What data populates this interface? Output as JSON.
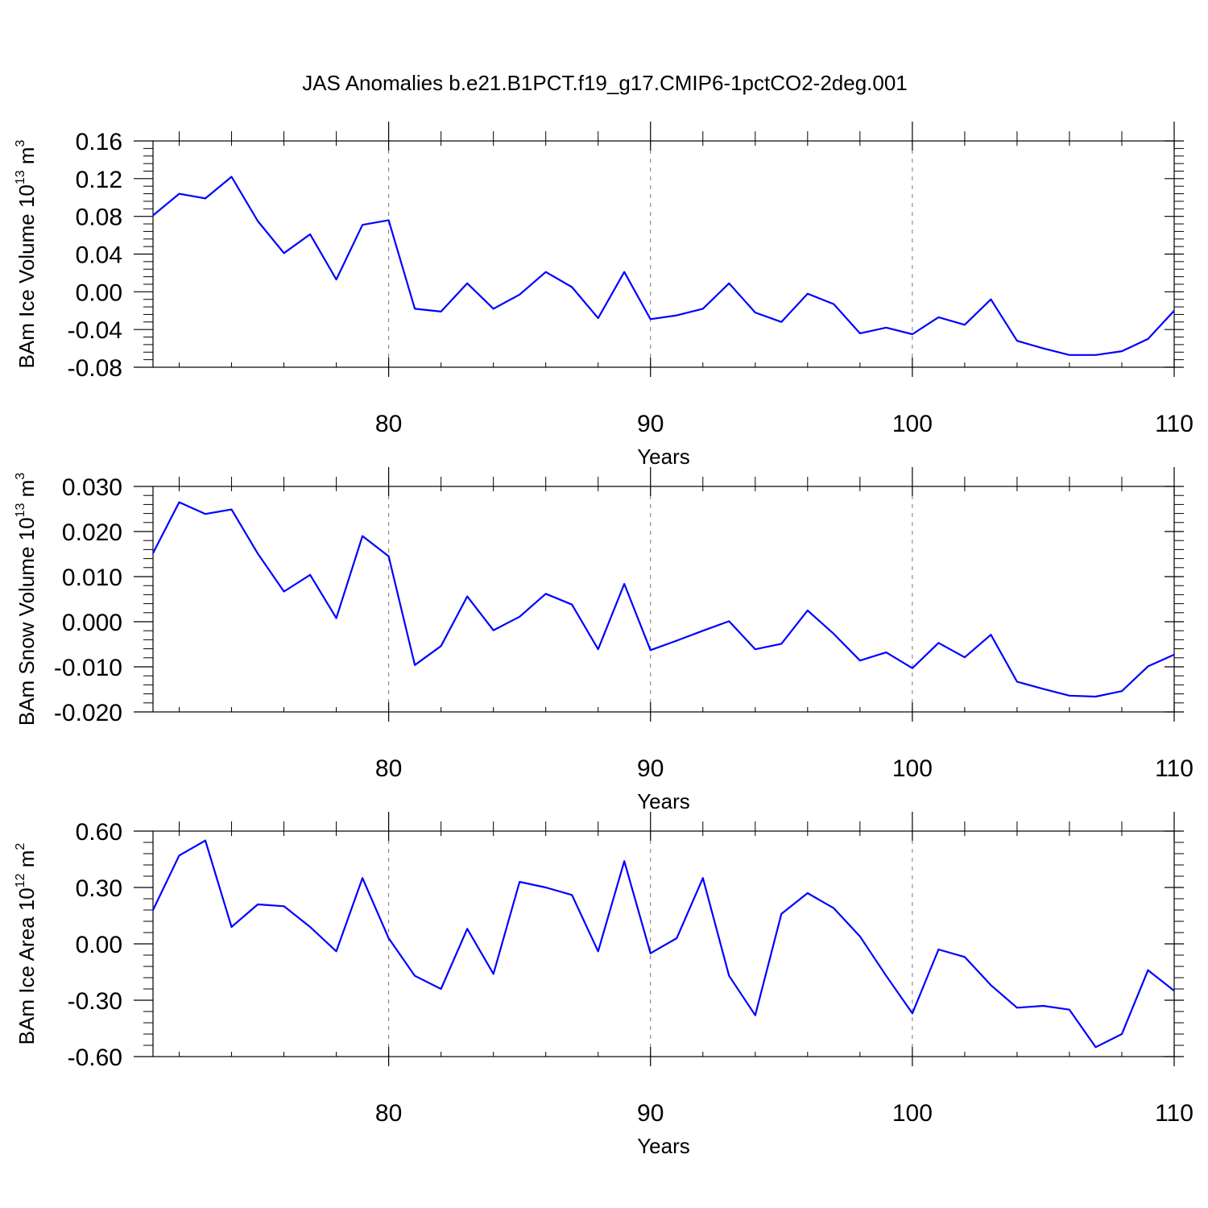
{
  "title": "JAS Anomalies b.e21.B1PCT.f19_g17.CMIP6-1pctCO2-2deg.001",
  "chart_data": [
    {
      "type": "line",
      "ylabel": {
        "base": "BAm Ice Volume 10",
        "exp": "13",
        "unit": " m",
        "unit_exp": "3"
      },
      "xlabel": "Years",
      "xlim": [
        71,
        110
      ],
      "ylim": [
        -0.08,
        0.16
      ],
      "xticks": [
        80,
        90,
        100,
        110
      ],
      "xtick_labels": [
        "80",
        "90",
        "100",
        "110"
      ],
      "yticks": [
        -0.08,
        -0.04,
        0.0,
        0.04,
        0.08,
        0.12,
        0.16
      ],
      "ytick_labels": [
        "-0.08",
        "-0.04",
        "0.00",
        "0.04",
        "0.08",
        "0.12",
        "0.16"
      ],
      "vgrid": [
        80,
        90,
        100
      ],
      "line_color": "#0000ff",
      "x": [
        71,
        72,
        73,
        74,
        75,
        76,
        77,
        78,
        79,
        80,
        81,
        82,
        83,
        84,
        85,
        86,
        87,
        88,
        89,
        90,
        91,
        92,
        93,
        94,
        95,
        96,
        97,
        98,
        99,
        100,
        101,
        102,
        103,
        104,
        105,
        106,
        107,
        108,
        109,
        110
      ],
      "y": [
        0.081,
        0.104,
        0.099,
        0.122,
        0.075,
        0.041,
        0.061,
        0.013,
        0.071,
        0.076,
        -0.018,
        -0.021,
        0.009,
        -0.018,
        -0.003,
        0.021,
        0.005,
        -0.028,
        0.021,
        -0.029,
        -0.025,
        -0.018,
        0.009,
        -0.022,
        -0.032,
        -0.002,
        -0.013,
        -0.044,
        -0.038,
        -0.045,
        -0.027,
        -0.035,
        -0.008,
        -0.052,
        -0.06,
        -0.067,
        -0.067,
        -0.063,
        -0.05,
        -0.02
      ]
    },
    {
      "type": "line",
      "ylabel": {
        "base": "BAm Snow Volume 10",
        "exp": "13",
        "unit": " m",
        "unit_exp": "3"
      },
      "xlabel": "Years",
      "xlim": [
        71,
        110
      ],
      "ylim": [
        -0.02,
        0.03
      ],
      "xticks": [
        80,
        90,
        100,
        110
      ],
      "xtick_labels": [
        "80",
        "90",
        "100",
        "110"
      ],
      "yticks": [
        -0.02,
        -0.01,
        0.0,
        0.01,
        0.02,
        0.03
      ],
      "ytick_labels": [
        "-0.020",
        "-0.010",
        "0.000",
        "0.010",
        "0.020",
        "0.030"
      ],
      "vgrid": [
        80,
        90,
        100
      ],
      "line_color": "#0000ff",
      "x": [
        71,
        72,
        73,
        74,
        75,
        76,
        77,
        78,
        79,
        80,
        81,
        82,
        83,
        84,
        85,
        86,
        87,
        88,
        89,
        90,
        91,
        92,
        93,
        94,
        95,
        96,
        97,
        98,
        99,
        100,
        101,
        102,
        103,
        104,
        105,
        106,
        107,
        108,
        109,
        110
      ],
      "y": [
        0.0152,
        0.0265,
        0.0239,
        0.0249,
        0.0151,
        0.0067,
        0.0104,
        0.0008,
        0.019,
        0.0145,
        -0.0096,
        -0.0054,
        0.0056,
        -0.0019,
        0.0011,
        0.0062,
        0.0038,
        -0.0061,
        0.0084,
        -0.0063,
        -0.0042,
        -0.002,
        0.0001,
        -0.0061,
        -0.0049,
        0.0025,
        -0.0027,
        -0.0086,
        -0.0068,
        -0.0103,
        -0.0047,
        -0.0079,
        -0.0029,
        -0.0133,
        -0.0149,
        -0.0164,
        -0.0166,
        -0.0154,
        -0.0099,
        -0.0073
      ]
    },
    {
      "type": "line",
      "ylabel": {
        "base": "BAm Ice Area 10",
        "exp": "12",
        "unit": " m",
        "unit_exp": "2"
      },
      "xlabel": "Years",
      "xlim": [
        71,
        110
      ],
      "ylim": [
        -0.6,
        0.6
      ],
      "xticks": [
        80,
        90,
        100,
        110
      ],
      "xtick_labels": [
        "80",
        "90",
        "100",
        "110"
      ],
      "yticks": [
        -0.6,
        -0.3,
        0.0,
        0.3,
        0.6
      ],
      "ytick_labels": [
        "-0.60",
        "-0.30",
        "0.00",
        "0.30",
        "0.60"
      ],
      "vgrid": [
        80,
        90,
        100
      ],
      "line_color": "#0000ff",
      "x": [
        71,
        72,
        73,
        74,
        75,
        76,
        77,
        78,
        79,
        80,
        81,
        82,
        83,
        84,
        85,
        86,
        87,
        88,
        89,
        90,
        91,
        92,
        93,
        94,
        95,
        96,
        97,
        98,
        99,
        100,
        101,
        102,
        103,
        104,
        105,
        106,
        107,
        108,
        109,
        110
      ],
      "y": [
        0.18,
        0.47,
        0.55,
        0.09,
        0.21,
        0.2,
        0.09,
        -0.04,
        0.35,
        0.03,
        -0.17,
        -0.24,
        0.08,
        -0.16,
        0.33,
        0.3,
        0.26,
        -0.04,
        0.44,
        -0.05,
        0.03,
        0.35,
        -0.17,
        -0.38,
        0.16,
        0.27,
        0.19,
        0.04,
        -0.17,
        -0.37,
        -0.03,
        -0.07,
        -0.22,
        -0.34,
        -0.33,
        -0.35,
        -0.55,
        -0.48,
        -0.14,
        -0.25
      ]
    }
  ]
}
